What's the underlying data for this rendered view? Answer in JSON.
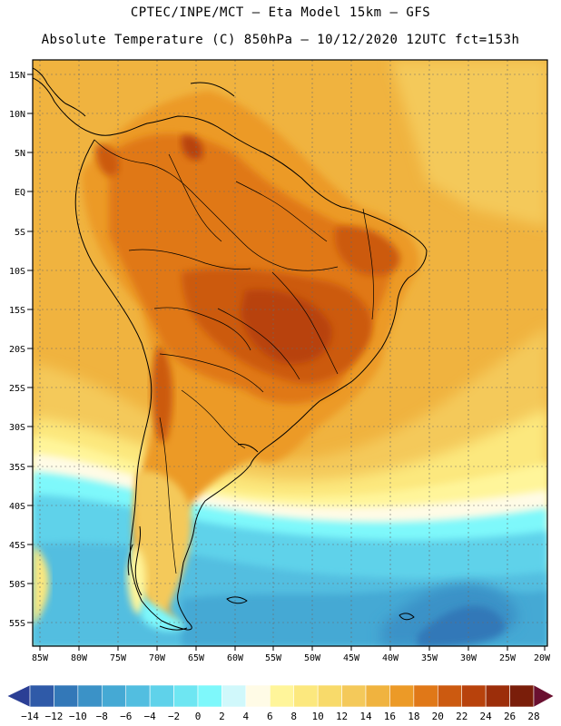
{
  "header": {
    "line1": "CPTEC/INPE/MCT –  Eta Model 15km – GFS",
    "line2": "Absolute Temperature (C) 850hPa – 10/12/2020 12UTC fct=153h"
  },
  "axes": {
    "lat_labels": [
      "15N",
      "10N",
      "5N",
      "EQ",
      "5S",
      "10S",
      "15S",
      "20S",
      "25S",
      "30S",
      "35S",
      "40S",
      "45S",
      "50S",
      "55S"
    ],
    "lon_labels": [
      "85W",
      "80W",
      "75W",
      "70W",
      "65W",
      "60W",
      "55W",
      "50W",
      "45W",
      "40W",
      "35W",
      "30W",
      "25W",
      "20W"
    ]
  },
  "colorbar": {
    "labels": [
      "-14",
      "-12",
      "-10",
      "-8",
      "-6",
      "-4",
      "-2",
      "0",
      "2",
      "4",
      "6",
      "8",
      "10",
      "12",
      "14",
      "16",
      "18",
      "20",
      "22",
      "24",
      "26",
      "28"
    ],
    "colors": [
      "#2b3f95",
      "#2f5aa8",
      "#3378b8",
      "#3b92c7",
      "#45a9d4",
      "#52bee0",
      "#5fd2ea",
      "#6ee6f2",
      "#7ef8fb",
      "#d0f8fb",
      "#fffbe6",
      "#fff59a",
      "#fce87e",
      "#f8da6a",
      "#f4c95a",
      "#f0b33f",
      "#ec9a27",
      "#e07818",
      "#cc5a10",
      "#b8420c",
      "#9c2e0a",
      "#7a1e0a",
      "#6a1030"
    ]
  },
  "colors": {
    "ocean_warm": "#f0b33f",
    "land_hot": "#cc5a10",
    "land_warm": "#ec9a27",
    "cold_south": "#52bee0",
    "frame": "#000000"
  }
}
